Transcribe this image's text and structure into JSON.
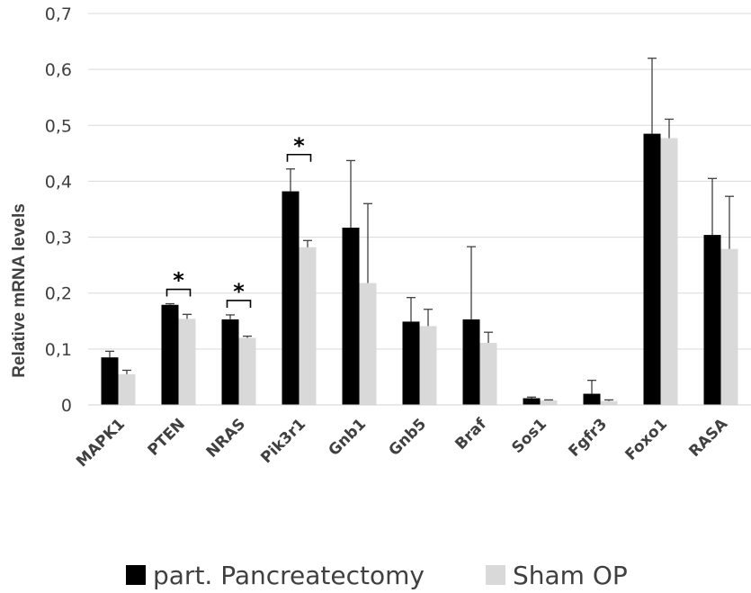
{
  "chart_data": {
    "type": "bar",
    "title": "",
    "xlabel": "",
    "ylabel": "Relative mRNA levels",
    "ylim": [
      0,
      0.7
    ],
    "yticks": [
      "0",
      "0,1",
      "0,2",
      "0,3",
      "0,4",
      "0,5",
      "0,6",
      "0,7"
    ],
    "yticks_values": [
      0,
      0.1,
      0.2,
      0.3,
      0.4,
      0.5,
      0.6,
      0.7
    ],
    "grid": true,
    "legend_position": "bottom",
    "categories": [
      "MAPK1",
      "PTEN",
      "NRAS",
      "Pik3r1",
      "Gnb1",
      "Gnb5",
      "Braf",
      "Sos1",
      "Fgfr3",
      "Foxo1",
      "RASA"
    ],
    "series": [
      {
        "name": "part. Pancreatectomy",
        "color": "#000000",
        "values": [
          0.085,
          0.179,
          0.153,
          0.382,
          0.317,
          0.149,
          0.153,
          0.012,
          0.02,
          0.485,
          0.304
        ],
        "errors": [
          0.011,
          0.002,
          0.008,
          0.04,
          0.12,
          0.043,
          0.13,
          0.002,
          0.024,
          0.135,
          0.101
        ]
      },
      {
        "name": "Sham OP",
        "color": "#d9d9d9",
        "values": [
          0.055,
          0.154,
          0.12,
          0.282,
          0.218,
          0.141,
          0.111,
          0.008,
          0.007,
          0.477,
          0.279
        ],
        "errors": [
          0.007,
          0.008,
          0.003,
          0.012,
          0.142,
          0.03,
          0.019,
          0.001,
          0.002,
          0.034,
          0.094
        ]
      }
    ],
    "significance": [
      {
        "category": "PTEN",
        "label": "*"
      },
      {
        "category": "NRAS",
        "label": "*"
      },
      {
        "category": "Pik3r1",
        "label": "*"
      }
    ]
  }
}
